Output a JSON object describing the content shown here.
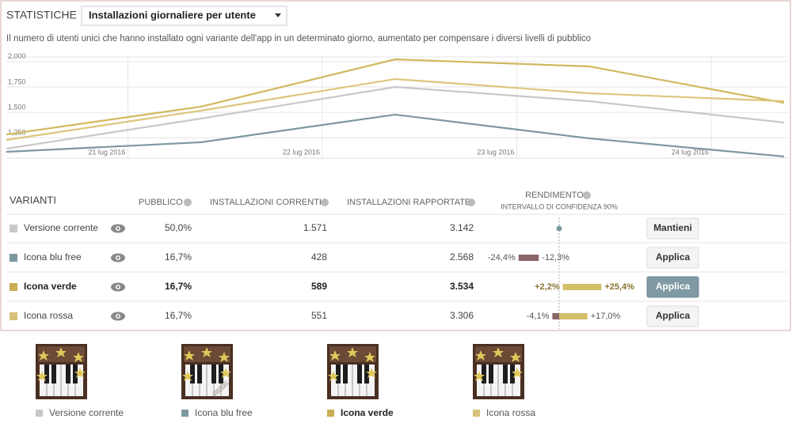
{
  "header": {
    "title": "STATISTICHE",
    "dropdown": "Installazioni giornaliere per utente"
  },
  "description": "Il numero di utenti unici che hanno installato ogni variante dell'app in un determinato giorno, aumentato per compensare i diversi livelli di pubblico",
  "chart_data": {
    "type": "line",
    "x": [
      0,
      1,
      2,
      3,
      4
    ],
    "xlim": [
      0,
      4
    ],
    "xticks": [
      {
        "value": 0.625,
        "label": "21 lug 2016"
      },
      {
        "value": 1.625,
        "label": "22 lug 2016"
      },
      {
        "value": 2.625,
        "label": "23 lug 2016"
      },
      {
        "value": 3.625,
        "label": "24 lug 2016"
      }
    ],
    "ylim": [
      1050,
      2100
    ],
    "yticks": [
      {
        "value": 1250,
        "label": "1,250"
      },
      {
        "value": 1500,
        "label": "1,500"
      },
      {
        "value": 1750,
        "label": "1,750"
      },
      {
        "value": 2000,
        "label": "2,000"
      }
    ],
    "grid": true,
    "series": [
      {
        "name": "Versione corrente",
        "color": "#c8c8c8",
        "values": [
          1143,
          1439,
          1750,
          1610,
          1400
        ]
      },
      {
        "name": "Icona blu free",
        "color": "#7d97a0",
        "values": [
          1112,
          1206,
          1478,
          1244,
          1066
        ]
      },
      {
        "name": "Icona verde",
        "color": "#d2b85e",
        "values": [
          1283,
          1556,
          2022,
          1952,
          1594
        ]
      },
      {
        "name": "Icona rossa",
        "color": "#dcc67c",
        "values": [
          1229,
          1517,
          1828,
          1688,
          1610
        ]
      }
    ]
  },
  "table": {
    "headers": {
      "variants": "VARIANTI",
      "audience": "PUBBLICO",
      "current": "INSTALLAZIONI CORRENTI",
      "scaled": "INSTALLAZIONI RAPPORTATE",
      "performance": "RENDIMENTO",
      "confidence": "INTERVALLO DI CONFIDENZA 90%"
    },
    "rows": [
      {
        "name": "Versione corrente",
        "color": "#c8c8c8",
        "audience": "50,0%",
        "current": "1.571",
        "scaled": "3.142",
        "action": "Mantieni"
      },
      {
        "name": "Icona blu free",
        "color": "#7d97a0",
        "audience": "16,7%",
        "current": "428",
        "scaled": "2.568",
        "ci": {
          "low": -24.4,
          "high": -12.3,
          "low_label": "-24,4%",
          "high_label": "-12,3%"
        },
        "action": "Applica"
      },
      {
        "name": "Icona verde",
        "color": "#c9ae55",
        "audience": "16,7%",
        "current": "589",
        "scaled": "3.534",
        "selected": true,
        "ci": {
          "low": 2.2,
          "high": 25.4,
          "low_label": "+2,2%",
          "high_label": "+25,4%"
        },
        "action": "Applica"
      },
      {
        "name": "Icona rossa",
        "color": "#d6c27a",
        "audience": "16,7%",
        "current": "551",
        "scaled": "3.306",
        "ci": {
          "low": -4.1,
          "high": 17.0,
          "low_label": "-4,1%",
          "high_label": "+17,0%"
        },
        "action": "Applica"
      }
    ]
  },
  "gallery": [
    {
      "label": "Versione corrente",
      "color": "#c8c8c8"
    },
    {
      "label": "Icona blu free",
      "color": "#7d97a0",
      "badge": "FREE!"
    },
    {
      "label": "Icona verde",
      "color": "#c9ae55",
      "selected": true
    },
    {
      "label": "Icona rossa",
      "color": "#d6c27a"
    }
  ]
}
